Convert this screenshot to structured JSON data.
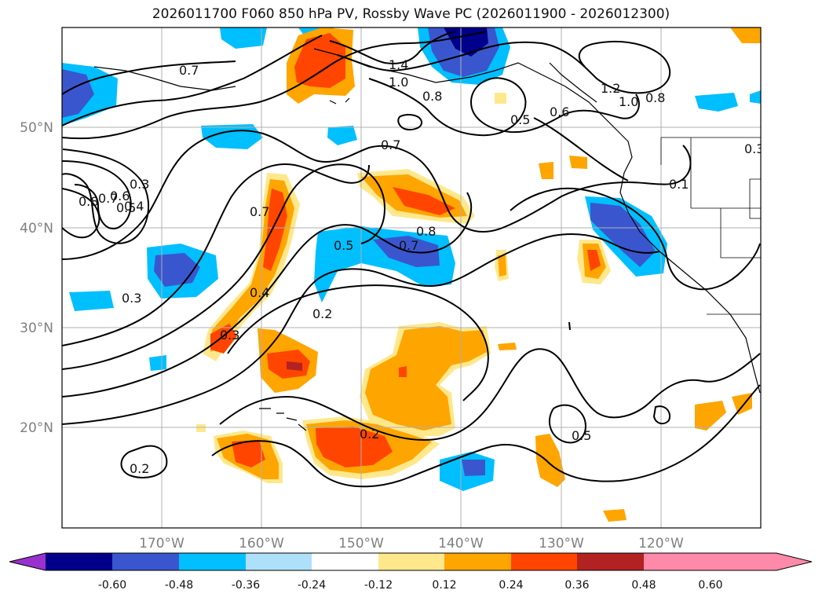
{
  "title": "2026011700 F060 850 hPa PV, Rossby Wave PC (2026011900 - 2026012300)",
  "map": {
    "projection": "cylindrical",
    "lon_range": [
      -180,
      -110
    ],
    "lat_range": [
      10,
      60
    ],
    "lat_ticks": [
      {
        "value": 20,
        "label": "20°N"
      },
      {
        "value": 30,
        "label": "30°N"
      },
      {
        "value": 40,
        "label": "40°N"
      },
      {
        "value": 50,
        "label": "50°N"
      }
    ],
    "lon_ticks": [
      {
        "value": -170,
        "label": "170°W"
      },
      {
        "value": -160,
        "label": "160°W"
      },
      {
        "value": -150,
        "label": "150°W"
      },
      {
        "value": -140,
        "label": "140°W"
      },
      {
        "value": -130,
        "label": "130°W"
      },
      {
        "value": -120,
        "label": "120°W"
      }
    ],
    "grid": true,
    "contour_labels": [
      "0.7",
      "1.4",
      "1.0",
      "0.8",
      "1.2",
      "1.0",
      "0.8",
      "0.5",
      "0.6",
      "0.7",
      "0.3",
      "0.8",
      "0.7",
      "0.6",
      "0.5",
      "0.4",
      "0.3",
      "0.7",
      "0.1",
      "0.5",
      "0.7",
      "0.8",
      "0.4",
      "0.3",
      "0.3",
      "0.2",
      "0.5",
      "0.2",
      "0.2"
    ]
  },
  "colorbar": {
    "levels": [
      "-0.60",
      "-0.48",
      "-0.36",
      "-0.24",
      "-0.12",
      "0.12",
      "0.24",
      "0.36",
      "0.48",
      "0.60"
    ],
    "colors": [
      "#9932cc",
      "#00008b",
      "#3a56cf",
      "#00bfff",
      "#aee0fa",
      "#ffffff",
      "#ffe88c",
      "#ffa500",
      "#ff4500",
      "#b22222",
      "#ff89a8"
    ]
  }
}
